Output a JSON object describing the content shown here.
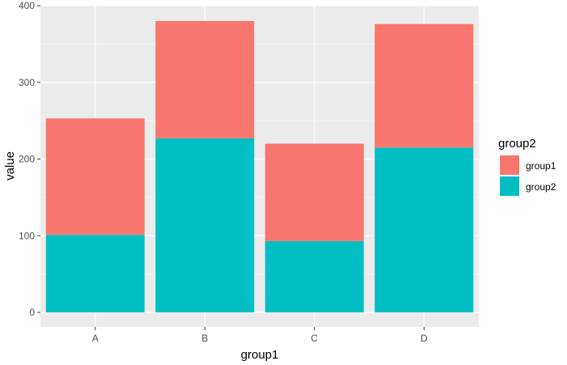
{
  "chart_data": {
    "type": "bar",
    "stacked": true,
    "categories": [
      "A",
      "B",
      "C",
      "D"
    ],
    "series": [
      {
        "name": "group1",
        "values": [
          152,
          153,
          127,
          161
        ],
        "color": "#F8766D"
      },
      {
        "name": "group2",
        "values": [
          101,
          227,
          93,
          215
        ],
        "color": "#00BFC4"
      }
    ],
    "xlabel": "group1",
    "ylabel": "value",
    "ylim": [
      0,
      400
    ],
    "yticks": [
      0,
      100,
      200,
      300,
      400
    ],
    "grid": true,
    "panel_background": "#EBEBEB",
    "gridline_color": "#FFFFFF",
    "legend": {
      "title": "group2",
      "placement": "right",
      "entries": [
        "group1",
        "group2"
      ]
    }
  }
}
